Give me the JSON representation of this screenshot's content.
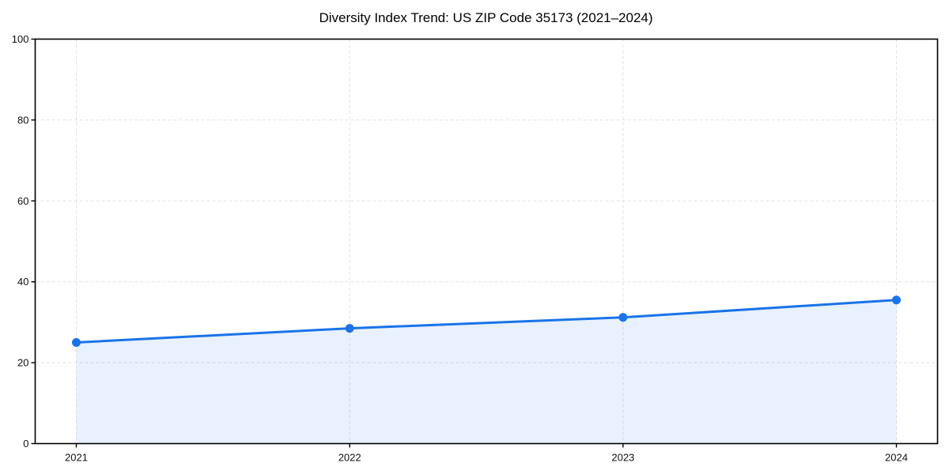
{
  "page": {
    "background": "#ffffff"
  },
  "chart_data": {
    "type": "area",
    "title": "Diversity Index Trend: US ZIP Code 35173 (2021–2024)",
    "categories": [
      "2021",
      "2022",
      "2023",
      "2024"
    ],
    "series": [
      {
        "name": "Diversity Index",
        "values": [
          25.0,
          28.5,
          31.2,
          35.5
        ]
      }
    ],
    "xlabel": "",
    "ylabel": "",
    "ylim": [
      0,
      100
    ],
    "y_ticks": [
      0,
      20,
      40,
      60,
      80,
      100
    ],
    "grid": true,
    "grid_style": "dashed",
    "legend": "none",
    "colors": {
      "line": "#1a73e8",
      "marker": "#1a73e8",
      "fill": "#1a73e8",
      "fill_opacity": 0.1,
      "grid": "#e1e1e1",
      "axis": "#000000",
      "tick_label": "#111111",
      "title": "#000000"
    }
  }
}
